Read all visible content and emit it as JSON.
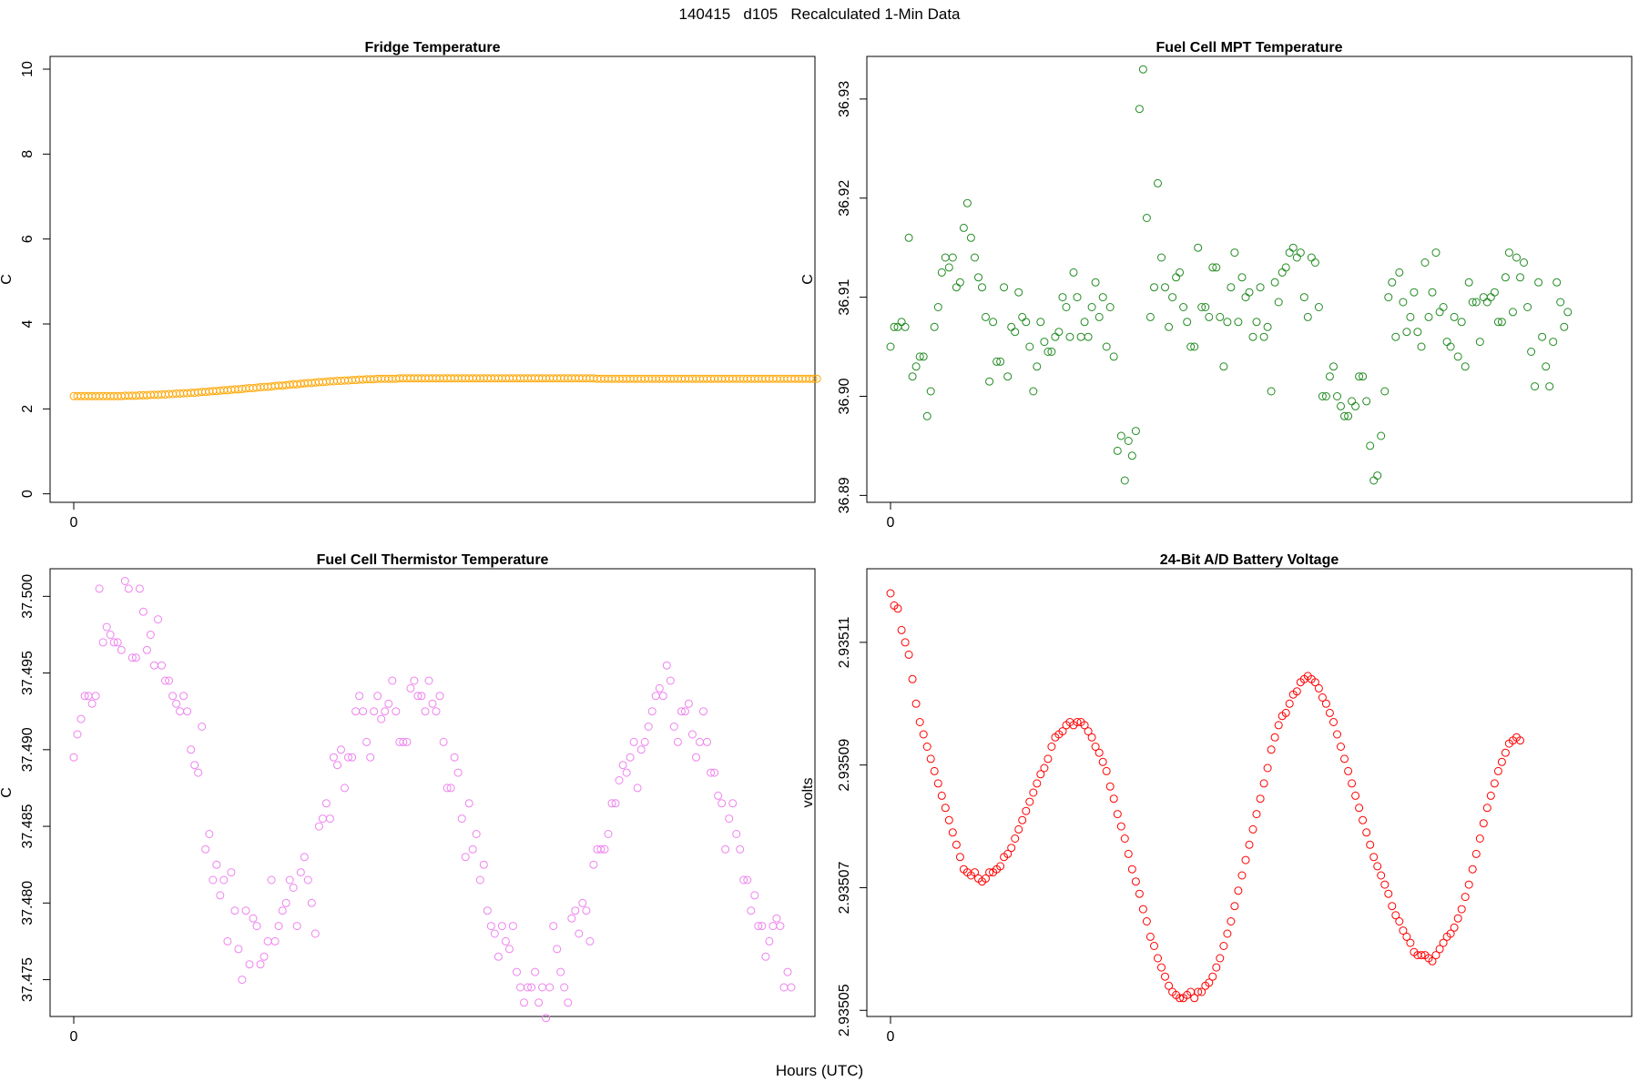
{
  "figure": {
    "title": "140415   d105   Recalculated 1-Min Data",
    "xlabel": "Hours (UTC)"
  },
  "chart_data": [
    {
      "type": "scatter",
      "title": "Fridge Temperature",
      "xlabel": "",
      "ylabel": "C",
      "color": "#FFA500",
      "xlim": [
        0,
        196
      ],
      "ylim": [
        -0.2,
        10.3
      ],
      "yticks": [
        0,
        2,
        4,
        6,
        8,
        10
      ],
      "ytick_labels": [
        "0",
        "2",
        "4",
        "6",
        "8",
        "10"
      ],
      "xticks": [
        0
      ],
      "xtick_labels": [
        "0"
      ],
      "values": [
        2.3,
        2.3,
        2.3,
        2.3,
        2.3,
        2.3,
        2.3,
        2.3,
        2.3,
        2.3,
        2.3,
        2.3,
        2.3,
        2.3,
        2.31,
        2.31,
        2.31,
        2.31,
        2.32,
        2.32,
        2.32,
        2.33,
        2.33,
        2.33,
        2.34,
        2.34,
        2.35,
        2.35,
        2.36,
        2.36,
        2.37,
        2.37,
        2.38,
        2.38,
        2.39,
        2.4,
        2.4,
        2.41,
        2.42,
        2.42,
        2.43,
        2.44,
        2.44,
        2.45,
        2.46,
        2.46,
        2.47,
        2.48,
        2.49,
        2.49,
        2.5,
        2.51,
        2.52,
        2.52,
        2.53,
        2.54,
        2.55,
        2.55,
        2.56,
        2.57,
        2.58,
        2.58,
        2.59,
        2.6,
        2.61,
        2.61,
        2.62,
        2.63,
        2.63,
        2.64,
        2.65,
        2.65,
        2.66,
        2.66,
        2.67,
        2.67,
        2.68,
        2.68,
        2.69,
        2.69,
        2.7,
        2.7,
        2.7,
        2.71,
        2.71,
        2.71,
        2.71,
        2.71,
        2.71,
        2.72,
        2.72,
        2.72,
        2.72,
        2.72,
        2.72,
        2.72,
        2.72,
        2.72,
        2.72,
        2.72,
        2.72,
        2.72,
        2.72,
        2.72,
        2.72,
        2.72,
        2.72,
        2.72,
        2.72,
        2.72,
        2.72,
        2.72,
        2.72,
        2.72,
        2.72,
        2.72,
        2.72,
        2.72,
        2.72,
        2.72,
        2.72,
        2.72,
        2.72,
        2.72,
        2.72,
        2.72,
        2.72,
        2.72,
        2.72,
        2.72,
        2.72,
        2.72,
        2.72,
        2.72,
        2.72,
        2.72,
        2.72,
        2.72,
        2.72,
        2.72,
        2.72,
        2.72,
        2.72,
        2.71,
        2.71,
        2.71,
        2.71,
        2.71,
        2.71,
        2.71,
        2.71,
        2.71,
        2.71,
        2.71,
        2.71,
        2.71,
        2.71,
        2.71,
        2.71,
        2.71,
        2.71,
        2.71,
        2.71,
        2.71,
        2.71,
        2.71,
        2.71,
        2.71,
        2.71,
        2.71,
        2.71,
        2.71,
        2.71,
        2.71,
        2.71,
        2.71,
        2.71,
        2.71,
        2.71,
        2.71,
        2.71,
        2.71,
        2.71,
        2.71,
        2.71,
        2.71,
        2.71,
        2.71,
        2.71,
        2.71,
        2.71,
        2.71,
        2.71,
        2.71,
        2.71,
        2.71,
        2.71,
        2.71,
        2.71,
        2.71,
        2.71,
        2.71,
        2.71,
        2.71
      ]
    },
    {
      "type": "scatter",
      "title": "Fuel Cell MPT Temperature",
      "xlabel": "",
      "ylabel": "C",
      "color": "#228B22",
      "xlim": [
        0,
        196
      ],
      "ylim": [
        36.8893,
        36.9343
      ],
      "yticks": [
        36.89,
        36.9,
        36.91,
        36.92,
        36.93
      ],
      "ytick_labels": [
        "36.89",
        "36.90",
        "36.91",
        "36.92",
        "36.93"
      ],
      "xticks": [
        0
      ],
      "xtick_labels": [
        "0"
      ],
      "values": [
        36.905,
        36.907,
        36.907,
        36.9075,
        36.907,
        36.916,
        36.902,
        36.903,
        36.904,
        36.904,
        36.898,
        36.9005,
        36.907,
        36.909,
        36.9125,
        36.914,
        36.913,
        36.914,
        36.911,
        36.9115,
        36.917,
        36.9195,
        36.916,
        36.914,
        36.912,
        36.911,
        36.908,
        36.9015,
        36.9075,
        36.9035,
        36.9035,
        36.911,
        36.902,
        36.907,
        36.9065,
        36.9105,
        36.908,
        36.9075,
        36.905,
        36.9005,
        36.903,
        36.9075,
        36.9055,
        36.9045,
        36.9045,
        36.906,
        36.9065,
        36.91,
        36.909,
        36.906,
        36.9125,
        36.91,
        36.906,
        36.9075,
        36.906,
        36.909,
        36.9115,
        36.908,
        36.91,
        36.905,
        36.909,
        36.904,
        36.8945,
        36.896,
        36.8915,
        36.8955,
        36.894,
        36.8965,
        36.929,
        36.933,
        36.918,
        36.908,
        36.911,
        36.9215,
        36.914,
        36.911,
        36.907,
        36.91,
        36.912,
        36.9125,
        36.909,
        36.9075,
        36.905,
        36.905,
        36.915,
        36.909,
        36.909,
        36.908,
        36.913,
        36.913,
        36.908,
        36.903,
        36.9075,
        36.911,
        36.9145,
        36.9075,
        36.912,
        36.91,
        36.9105,
        36.906,
        36.9075,
        36.911,
        36.906,
        36.907,
        36.9005,
        36.9115,
        36.9095,
        36.9125,
        36.913,
        36.9145,
        36.915,
        36.914,
        36.9145,
        36.91,
        36.908,
        36.914,
        36.9135,
        36.909,
        36.9,
        36.9,
        36.902,
        36.903,
        36.9,
        36.899,
        36.898,
        36.898,
        36.8995,
        36.899,
        36.902,
        36.902,
        36.8995,
        36.895,
        36.8915,
        36.892,
        36.896,
        36.9005,
        36.91,
        36.9115,
        36.906,
        36.9125,
        36.9095,
        36.9065,
        36.908,
        36.9105,
        36.9065,
        36.905,
        36.9135,
        36.908,
        36.9105,
        36.9145,
        36.9085,
        36.909,
        36.9055,
        36.905,
        36.908,
        36.904,
        36.9075,
        36.903,
        36.9115,
        36.9095,
        36.9095,
        36.9055,
        36.91,
        36.9095,
        36.91,
        36.9105,
        36.9075,
        36.9075,
        36.912,
        36.9145,
        36.9085,
        36.914,
        36.912,
        36.9135,
        36.909,
        36.9045,
        36.901,
        36.9115,
        36.906,
        36.903,
        36.901,
        36.9055,
        36.9115,
        36.9095,
        36.907,
        36.9085
      ]
    },
    {
      "type": "scatter",
      "title": "Fuel Cell Thermistor Temperature",
      "xlabel": "",
      "ylabel": "C",
      "color": "#EE82EE",
      "xlim": [
        0,
        196
      ],
      "ylim": [
        37.4726,
        37.5018
      ],
      "yticks": [
        37.475,
        37.48,
        37.485,
        37.49,
        37.495,
        37.5
      ],
      "ytick_labels": [
        "37.475",
        "37.480",
        "37.485",
        "37.490",
        "37.495",
        "37.500"
      ],
      "xticks": [
        0
      ],
      "xtick_labels": [
        "0"
      ],
      "values": [
        37.4895,
        37.491,
        37.492,
        37.4935,
        37.4935,
        37.493,
        37.4935,
        37.5005,
        37.497,
        37.498,
        37.4975,
        37.497,
        37.497,
        37.4965,
        37.501,
        37.5005,
        37.496,
        37.496,
        37.5005,
        37.499,
        37.4965,
        37.4975,
        37.4955,
        37.4985,
        37.4955,
        37.4945,
        37.4945,
        37.4935,
        37.493,
        37.4925,
        37.4935,
        37.4925,
        37.49,
        37.489,
        37.4885,
        37.4915,
        37.4835,
        37.4845,
        37.4815,
        37.4825,
        37.4805,
        37.4815,
        37.4775,
        37.482,
        37.4795,
        37.477,
        37.475,
        37.4795,
        37.476,
        37.479,
        37.4785,
        37.476,
        37.4765,
        37.4775,
        37.4815,
        37.4775,
        37.4785,
        37.4795,
        37.48,
        37.4815,
        37.481,
        37.4785,
        37.482,
        37.483,
        37.4815,
        37.48,
        37.478,
        37.485,
        37.4855,
        37.4865,
        37.4855,
        37.4895,
        37.489,
        37.49,
        37.4875,
        37.4895,
        37.4895,
        37.4925,
        37.4935,
        37.4925,
        37.4905,
        37.4895,
        37.4925,
        37.4935,
        37.492,
        37.4925,
        37.493,
        37.4945,
        37.4925,
        37.4905,
        37.4905,
        37.4905,
        37.494,
        37.4945,
        37.4935,
        37.4935,
        37.4925,
        37.4945,
        37.493,
        37.4925,
        37.4935,
        37.4905,
        37.4875,
        37.4875,
        37.4895,
        37.4885,
        37.4855,
        37.483,
        37.4865,
        37.4835,
        37.4845,
        37.4815,
        37.4825,
        37.4795,
        37.4785,
        37.478,
        37.4765,
        37.4785,
        37.4775,
        37.477,
        37.4785,
        37.4755,
        37.4745,
        37.4735,
        37.4745,
        37.4745,
        37.4755,
        37.4735,
        37.4745,
        37.4725,
        37.4745,
        37.4785,
        37.477,
        37.4755,
        37.4745,
        37.4735,
        37.479,
        37.4795,
        37.478,
        37.48,
        37.4795,
        37.4775,
        37.4825,
        37.4835,
        37.4835,
        37.4835,
        37.4845,
        37.4865,
        37.4865,
        37.488,
        37.489,
        37.4885,
        37.4895,
        37.4905,
        37.4875,
        37.49,
        37.4905,
        37.4915,
        37.4925,
        37.4935,
        37.494,
        37.4935,
        37.4955,
        37.4945,
        37.4915,
        37.4905,
        37.4925,
        37.4925,
        37.493,
        37.491,
        37.4895,
        37.4905,
        37.4925,
        37.4905,
        37.4885,
        37.4885,
        37.487,
        37.4865,
        37.4835,
        37.4855,
        37.4865,
        37.4845,
        37.4835,
        37.4815,
        37.4815,
        37.4795,
        37.4805,
        37.4785,
        37.4785,
        37.4765,
        37.4775,
        37.4785,
        37.479,
        37.4785,
        37.4745,
        37.4755,
        37.4745
      ]
    },
    {
      "type": "scatter",
      "title": "24-Bit A/D Battery Voltage",
      "xlabel": "",
      "ylabel": "volts",
      "color": "#FF0000",
      "xlim": [
        0,
        196
      ],
      "ylim": [
        2.935049,
        2.935122
      ],
      "yticks": [
        2.93505,
        2.93507,
        2.93509,
        2.93511
      ],
      "ytick_labels": [
        "2.93505",
        "2.93507",
        "2.93509",
        "2.93511"
      ],
      "xticks": [
        0
      ],
      "xtick_labels": [
        "0"
      ],
      "values": [
        2.935118,
        2.935116,
        2.9351155,
        2.935112,
        2.93511,
        2.935108,
        2.935104,
        2.9351,
        2.935097,
        2.935095,
        2.935093,
        2.935091,
        2.935089,
        2.935087,
        2.935085,
        2.935083,
        2.935081,
        2.935079,
        2.935077,
        2.935075,
        2.935073,
        2.9350725,
        2.935072,
        2.9350725,
        2.9350715,
        2.935071,
        2.9350715,
        2.9350725,
        2.9350725,
        2.935073,
        2.9350735,
        2.935075,
        2.9350755,
        2.9350765,
        2.935078,
        2.9350795,
        2.935081,
        2.9350825,
        2.935084,
        2.9350855,
        2.935087,
        2.9350885,
        2.9350895,
        2.935091,
        2.935093,
        2.9350945,
        2.935095,
        2.9350955,
        2.9350965,
        2.935097,
        2.9350965,
        2.935097,
        2.935097,
        2.9350965,
        2.9350955,
        2.9350945,
        2.935093,
        2.935092,
        2.9350905,
        2.935089,
        2.9350865,
        2.9350845,
        2.935082,
        2.93508,
        2.935078,
        2.9350755,
        2.935073,
        2.935071,
        2.935069,
        2.9350665,
        2.9350645,
        2.935062,
        2.9350605,
        2.9350585,
        2.935057,
        2.9350555,
        2.935054,
        2.935053,
        2.9350525,
        2.935052,
        2.935052,
        2.9350525,
        2.935053,
        2.935052,
        2.935053,
        2.935053,
        2.935054,
        2.9350545,
        2.9350555,
        2.935057,
        2.9350585,
        2.9350605,
        2.9350625,
        2.9350645,
        2.935067,
        2.9350695,
        2.935072,
        2.9350745,
        2.935077,
        2.9350795,
        2.935082,
        2.9350845,
        2.935087,
        2.9350895,
        2.9350925,
        2.9350945,
        2.9350965,
        2.935098,
        2.9350985,
        2.9351,
        2.9351015,
        2.935102,
        2.9351035,
        2.935104,
        2.9351045,
        2.935104,
        2.9351035,
        2.9351025,
        2.935101,
        2.9351,
        2.9350985,
        2.935097,
        2.935095,
        2.935093,
        2.935091,
        2.935089,
        2.935087,
        2.935085,
        2.935083,
        2.935081,
        2.935079,
        2.935077,
        2.935075,
        2.9350735,
        2.935072,
        2.9350705,
        2.935069,
        2.935067,
        2.9350655,
        2.9350645,
        2.935063,
        2.935062,
        2.935061,
        2.9350595,
        2.935059,
        2.935059,
        2.935059,
        2.9350585,
        2.935058,
        2.935059,
        2.93506,
        2.935061,
        2.935062,
        2.9350625,
        2.9350635,
        2.935065,
        2.9350665,
        2.9350685,
        2.9350705,
        2.935073,
        2.9350755,
        2.935078,
        2.9350805,
        2.935083,
        2.935085,
        2.935087,
        2.935089,
        2.9350905,
        2.935092,
        2.9350935,
        2.935094,
        2.9350945,
        2.935094
      ]
    }
  ]
}
